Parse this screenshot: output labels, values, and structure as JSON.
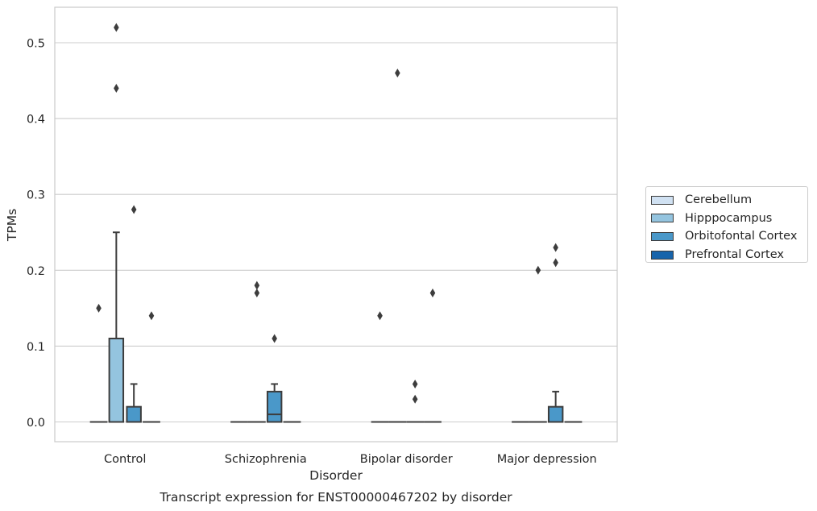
{
  "chart_data": {
    "type": "box",
    "title": "Transcript expression for ENST00000467202 by disorder",
    "xlabel": "Disorder",
    "ylabel": "TPMs",
    "ylim": [
      -0.025,
      0.55
    ],
    "yticks": [
      0.0,
      0.1,
      0.2,
      0.3,
      0.4,
      0.5
    ],
    "ytick_labels": [
      "0.0",
      "0.1",
      "0.2",
      "0.3",
      "0.4",
      "0.5"
    ],
    "categories": [
      "Control",
      "Schizophrenia",
      "Bipolar disorder",
      "Major depression"
    ],
    "grid": true,
    "legend_position": "right",
    "series": [
      {
        "name": "Cerebellum",
        "color": "#d0e1f2",
        "boxes": [
          {
            "q1": 0,
            "median": 0,
            "q3": 0,
            "whislo": 0,
            "whishi": 0,
            "fliers": [
              0.15
            ]
          },
          {
            "q1": 0,
            "median": 0,
            "q3": 0,
            "whislo": 0,
            "whishi": 0,
            "fliers": []
          },
          {
            "q1": 0,
            "median": 0,
            "q3": 0,
            "whislo": 0,
            "whishi": 0,
            "fliers": [
              0.14
            ]
          },
          {
            "q1": 0,
            "median": 0,
            "q3": 0,
            "whislo": 0,
            "whishi": 0,
            "fliers": []
          }
        ]
      },
      {
        "name": "Hipppocampus",
        "color": "#94c4df",
        "boxes": [
          {
            "q1": 0,
            "median": 0,
            "q3": 0.11,
            "whislo": 0,
            "whishi": 0.25,
            "fliers": [
              0.44,
              0.52
            ]
          },
          {
            "q1": 0,
            "median": 0,
            "q3": 0,
            "whislo": 0,
            "whishi": 0,
            "fliers": [
              0.17,
              0.18
            ]
          },
          {
            "q1": 0,
            "median": 0,
            "q3": 0,
            "whislo": 0,
            "whishi": 0,
            "fliers": [
              0.46
            ]
          },
          {
            "q1": 0,
            "median": 0,
            "q3": 0,
            "whislo": 0,
            "whishi": 0,
            "fliers": [
              0.2
            ]
          }
        ]
      },
      {
        "name": "Orbitofontal Cortex",
        "color": "#4a98c9",
        "boxes": [
          {
            "q1": 0,
            "median": 0,
            "q3": 0.02,
            "whislo": 0,
            "whishi": 0.05,
            "fliers": [
              0.28
            ]
          },
          {
            "q1": 0,
            "median": 0.01,
            "q3": 0.04,
            "whislo": 0,
            "whishi": 0.05,
            "fliers": [
              0.11
            ]
          },
          {
            "q1": 0,
            "median": 0,
            "q3": 0,
            "whislo": 0,
            "whishi": 0,
            "fliers": [
              0.03,
              0.05
            ]
          },
          {
            "q1": 0,
            "median": 0,
            "q3": 0.02,
            "whislo": 0,
            "whishi": 0.04,
            "fliers": [
              0.21,
              0.23
            ]
          }
        ]
      },
      {
        "name": "Prefrontal Cortex",
        "color": "#1764ab",
        "boxes": [
          {
            "q1": 0,
            "median": 0,
            "q3": 0,
            "whislo": 0,
            "whishi": 0,
            "fliers": [
              0.14
            ]
          },
          {
            "q1": 0,
            "median": 0,
            "q3": 0,
            "whislo": 0,
            "whishi": 0,
            "fliers": []
          },
          {
            "q1": 0,
            "median": 0,
            "q3": 0,
            "whislo": 0,
            "whishi": 0,
            "fliers": [
              0.17
            ]
          },
          {
            "q1": 0,
            "median": 0,
            "q3": 0,
            "whislo": 0,
            "whishi": 0,
            "fliers": []
          }
        ]
      }
    ]
  }
}
